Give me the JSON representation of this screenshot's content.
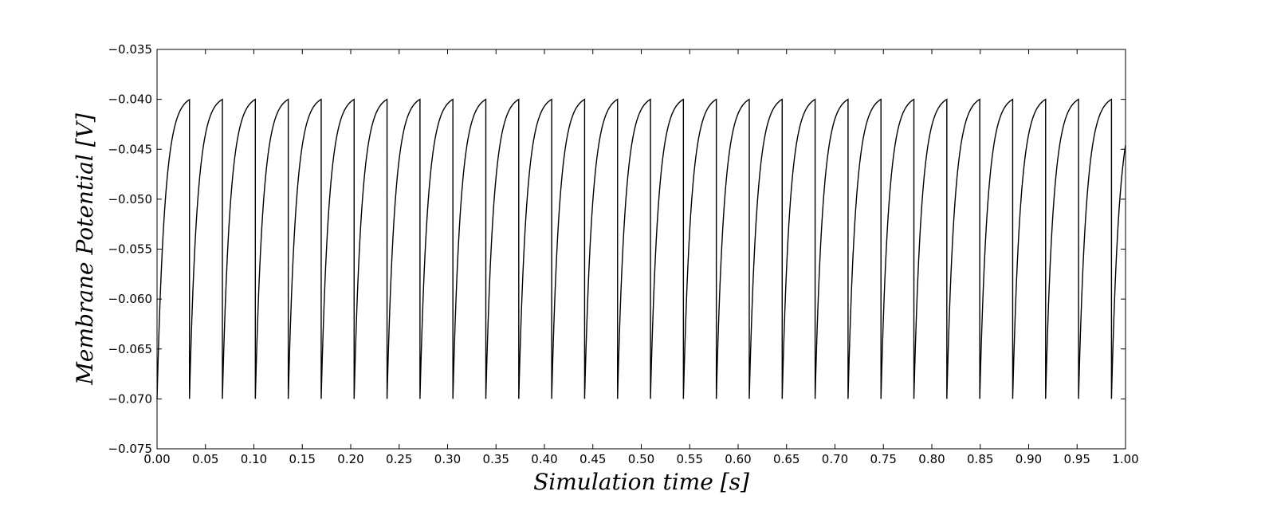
{
  "chart_data": {
    "type": "line",
    "title": "",
    "xlabel": "Simulation time [s]",
    "ylabel": "Membrane Potential [V]",
    "xlim": [
      0.0,
      1.0
    ],
    "ylim": [
      -0.075,
      -0.035
    ],
    "grid": false,
    "legend": "none",
    "line_color": "#000000",
    "x_ticks": [
      "0.00",
      "0.05",
      "0.10",
      "0.15",
      "0.20",
      "0.25",
      "0.30",
      "0.35",
      "0.40",
      "0.45",
      "0.50",
      "0.55",
      "0.60",
      "0.65",
      "0.70",
      "0.75",
      "0.80",
      "0.85",
      "0.90",
      "0.95",
      "1.00"
    ],
    "y_ticks": [
      "−0.035",
      "−0.040",
      "−0.045",
      "−0.050",
      "−0.055",
      "−0.060",
      "−0.065",
      "−0.070",
      "−0.075"
    ],
    "series": [
      {
        "reset_potential": -0.07,
        "threshold": -0.04,
        "end_value": -0.0468,
        "spike_times": [
          0.0335,
          0.0675,
          0.1015,
          0.1355,
          0.1695,
          0.2035,
          0.2375,
          0.2715,
          0.3055,
          0.3395,
          0.3735,
          0.4075,
          0.4415,
          0.4755,
          0.5095,
          0.5435,
          0.5775,
          0.6115,
          0.6455,
          0.6795,
          0.7135,
          0.7475,
          0.7815,
          0.8155,
          0.8495,
          0.8835,
          0.9175,
          0.9515,
          0.9855
        ]
      }
    ]
  }
}
